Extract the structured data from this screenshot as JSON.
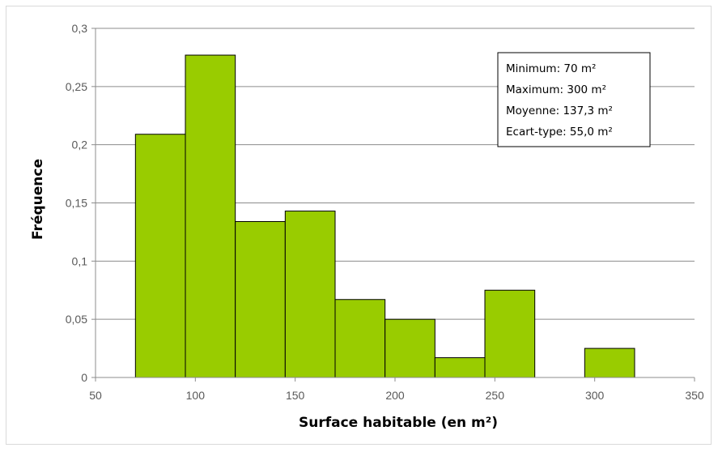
{
  "chart_data": {
    "type": "bar",
    "xlabel": "Surface habitable (en m²)",
    "ylabel": "Fréquence",
    "xlim": [
      50,
      350
    ],
    "ylim": [
      0,
      0.3
    ],
    "x_ticks": [
      "50",
      "100",
      "150",
      "200",
      "250",
      "300",
      "350"
    ],
    "y_ticks": [
      "0",
      "0,05",
      "0,1",
      "0,15",
      "0,2",
      "0,25",
      "0,3"
    ],
    "bins": [
      {
        "start": 70,
        "end": 95,
        "value": 0.209
      },
      {
        "start": 95,
        "end": 120,
        "value": 0.277
      },
      {
        "start": 120,
        "end": 145,
        "value": 0.134
      },
      {
        "start": 145,
        "end": 170,
        "value": 0.143
      },
      {
        "start": 170,
        "end": 195,
        "value": 0.067
      },
      {
        "start": 195,
        "end": 220,
        "value": 0.05
      },
      {
        "start": 220,
        "end": 245,
        "value": 0.017
      },
      {
        "start": 245,
        "end": 270,
        "value": 0.075
      },
      {
        "start": 270,
        "end": 295,
        "value": 0
      },
      {
        "start": 295,
        "end": 320,
        "value": 0.025
      },
      {
        "start": 320,
        "end": 345,
        "value": 0
      }
    ],
    "stats_box": [
      "Minimum: 70 m²",
      "Maximum: 300 m²",
      "Moyenne: 137,3 m²",
      "Ecart-type: 55,0 m²"
    ],
    "grid": true,
    "legend": "none"
  },
  "colors": {
    "bar_fill": "#99cc00",
    "bar_stroke": "#000000",
    "grid": "#8c8c8c",
    "axis": "#8c8c8c"
  }
}
